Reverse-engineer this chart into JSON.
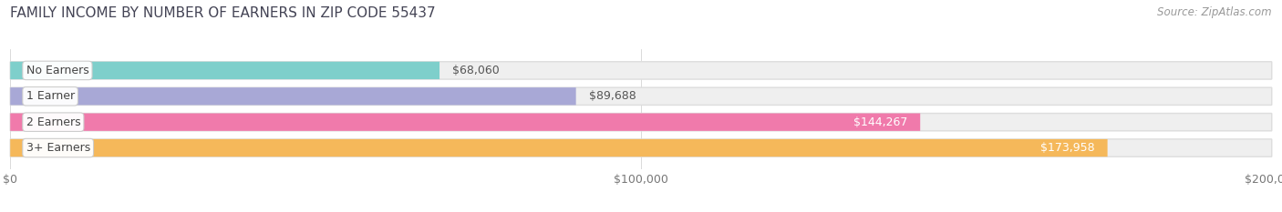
{
  "title": "FAMILY INCOME BY NUMBER OF EARNERS IN ZIP CODE 55437",
  "source_text": "Source: ZipAtlas.com",
  "categories": [
    "No Earners",
    "1 Earner",
    "2 Earners",
    "3+ Earners"
  ],
  "values": [
    68060,
    89688,
    144267,
    173958
  ],
  "bar_colors": [
    "#7ecfcb",
    "#a8a8d6",
    "#f07aab",
    "#f5b85a"
  ],
  "bar_bg_color": "#efefef",
  "value_labels": [
    "$68,060",
    "$89,688",
    "$144,267",
    "$173,958"
  ],
  "value_label_inside": [
    false,
    false,
    true,
    true
  ],
  "xmax": 200000,
  "xticks": [
    0,
    100000,
    200000
  ],
  "xtick_labels": [
    "$0",
    "$100,000",
    "$200,000"
  ],
  "background_color": "#ffffff",
  "title_fontsize": 11,
  "source_fontsize": 8.5,
  "bar_label_fontsize": 9,
  "value_label_fontsize": 9,
  "tick_fontsize": 9,
  "bar_height": 0.68,
  "bar_spacing": 1.0
}
